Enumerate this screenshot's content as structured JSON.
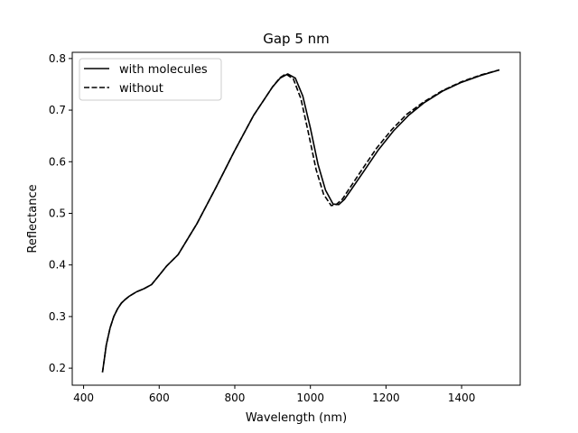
{
  "chart_data": {
    "type": "line",
    "title": "Gap 5 nm",
    "xlabel": "Wavelength (nm)",
    "ylabel": "Reflectance",
    "xlim": [
      370,
      1555
    ],
    "ylim": [
      0.167,
      0.812
    ],
    "xticks": [
      400,
      600,
      800,
      1000,
      1200,
      1400
    ],
    "yticks": [
      0.2,
      0.3,
      0.4,
      0.5,
      0.6,
      0.7,
      0.8
    ],
    "grid": false,
    "legend_position": "top-left",
    "series": [
      {
        "name": " with molecules",
        "style": "solid",
        "color": "#000000",
        "x": [
          450,
          460,
          470,
          480,
          490,
          500,
          510,
          520,
          540,
          560,
          580,
          600,
          620,
          650,
          700,
          750,
          800,
          850,
          900,
          920,
          940,
          960,
          980,
          1000,
          1020,
          1040,
          1060,
          1075,
          1090,
          1110,
          1140,
          1180,
          1220,
          1260,
          1300,
          1350,
          1400,
          1450,
          1500
        ],
        "y": [
          0.192,
          0.245,
          0.278,
          0.3,
          0.315,
          0.326,
          0.333,
          0.339,
          0.348,
          0.354,
          0.362,
          0.38,
          0.398,
          0.42,
          0.48,
          0.55,
          0.622,
          0.69,
          0.745,
          0.762,
          0.77,
          0.762,
          0.727,
          0.665,
          0.595,
          0.545,
          0.518,
          0.517,
          0.527,
          0.548,
          0.58,
          0.623,
          0.66,
          0.69,
          0.714,
          0.737,
          0.754,
          0.767,
          0.778
        ]
      },
      {
        "name": "without",
        "style": "dashed",
        "color": "#000000",
        "x": [
          450,
          460,
          470,
          480,
          490,
          500,
          510,
          520,
          540,
          560,
          580,
          600,
          620,
          650,
          700,
          750,
          800,
          850,
          900,
          920,
          935,
          955,
          975,
          995,
          1015,
          1035,
          1055,
          1068,
          1085,
          1105,
          1135,
          1175,
          1215,
          1255,
          1300,
          1350,
          1400,
          1450,
          1500
        ],
        "y": [
          0.192,
          0.245,
          0.278,
          0.3,
          0.315,
          0.326,
          0.333,
          0.339,
          0.348,
          0.354,
          0.362,
          0.38,
          0.398,
          0.42,
          0.48,
          0.55,
          0.622,
          0.69,
          0.745,
          0.763,
          0.77,
          0.76,
          0.722,
          0.655,
          0.585,
          0.537,
          0.515,
          0.517,
          0.528,
          0.55,
          0.583,
          0.626,
          0.662,
          0.692,
          0.716,
          0.738,
          0.755,
          0.768,
          0.778
        ]
      }
    ]
  }
}
